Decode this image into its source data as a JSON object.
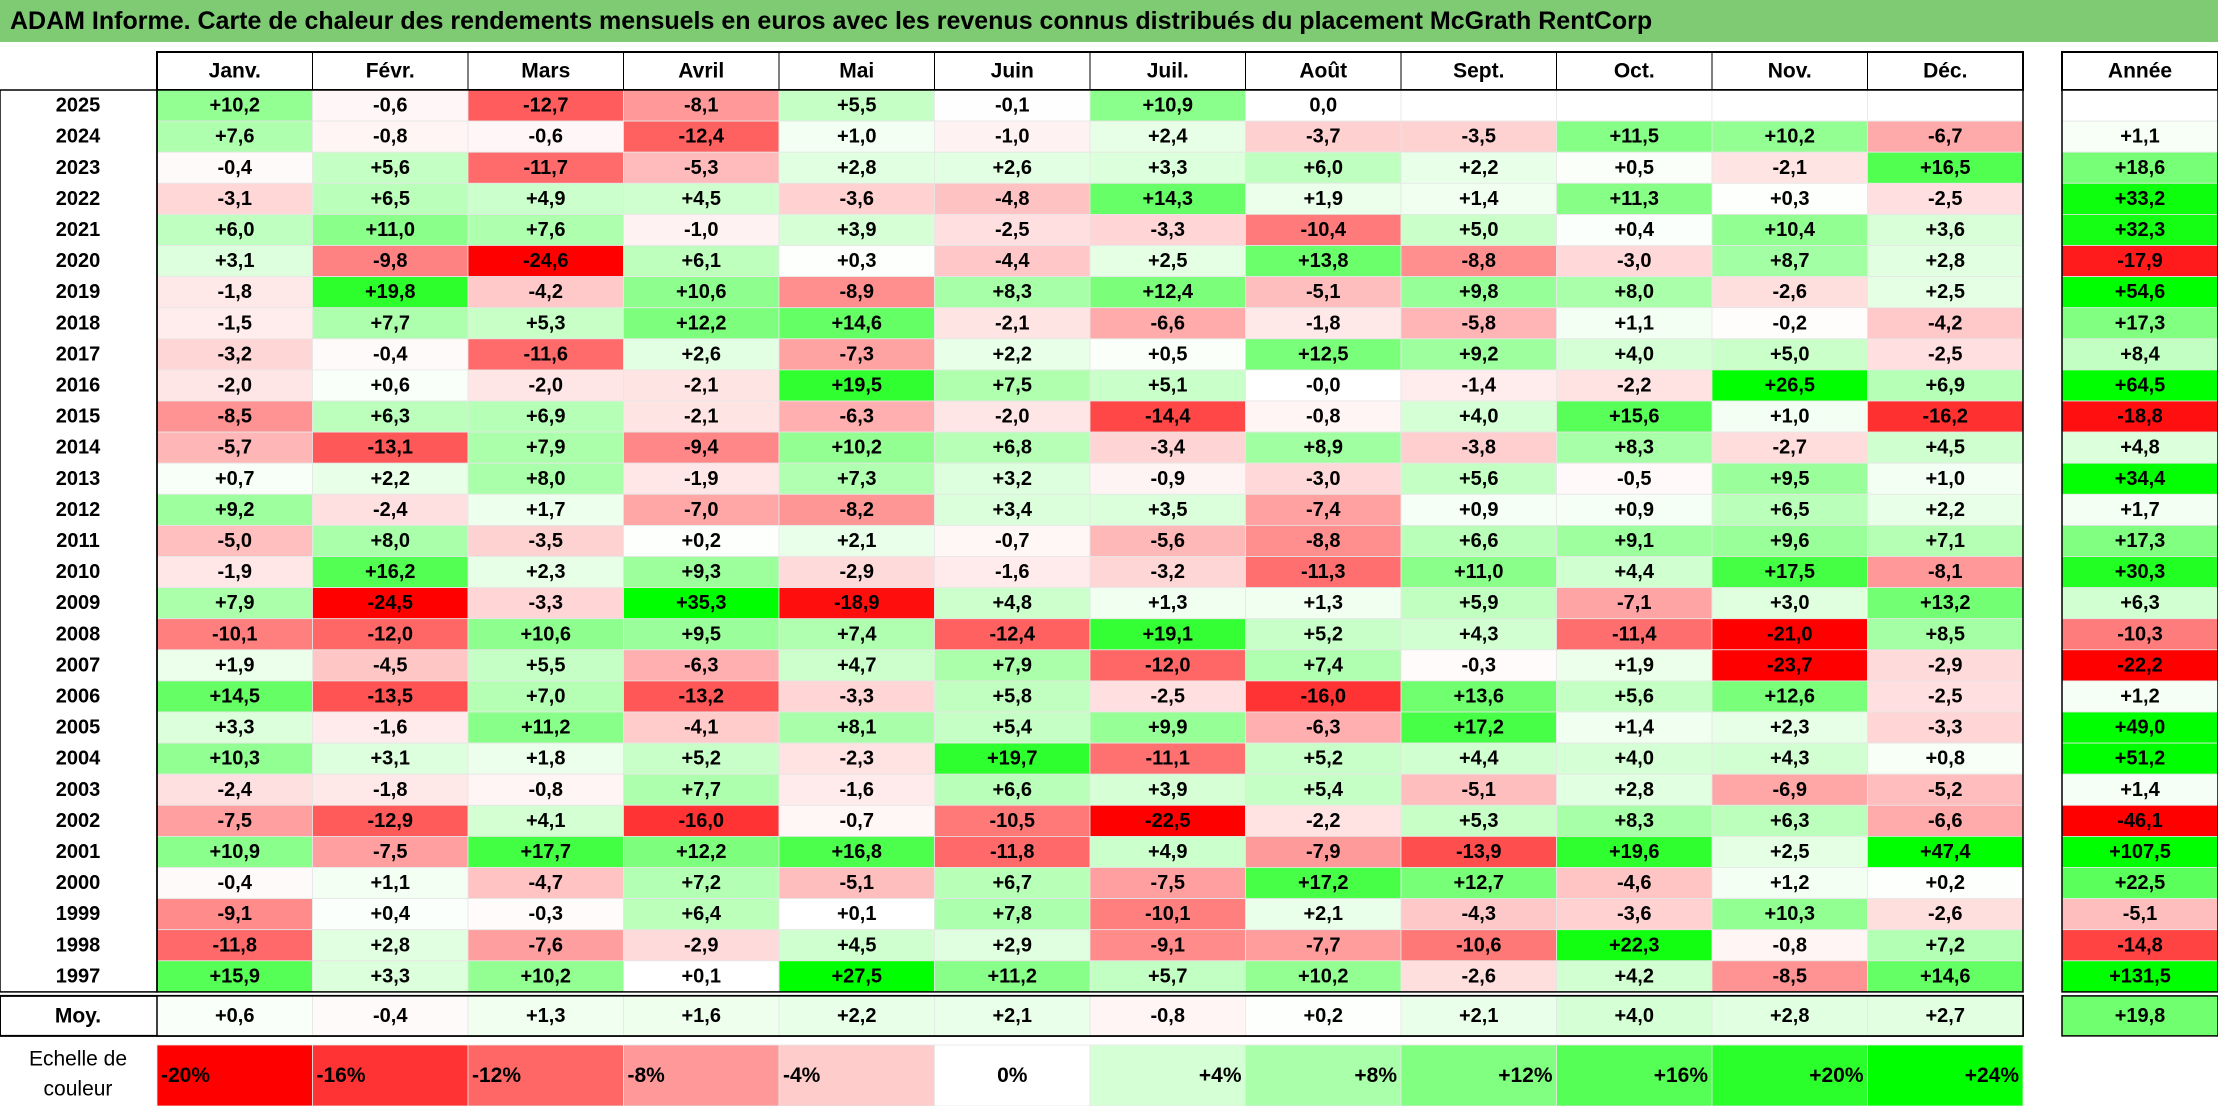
{
  "title": "ADAM Informe. Carte de chaleur des rendements mensuels en euros avec les revenus connus distribués du placement McGrath RentCorp",
  "colors": {
    "title_bar": "#7ecb74",
    "max_red": "#ff0000",
    "max_green": "#00ff00",
    "neutral": "#ffffff"
  },
  "chart_data": {
    "type": "heatmap",
    "title": "ADAM Informe. Carte de chaleur des rendements mensuels en euros avec les revenus connus distribués du placement McGrath RentCorp",
    "columns": [
      "Janv.",
      "Févr.",
      "Mars",
      "Avril",
      "Mai",
      "Juin",
      "Juil.",
      "Août",
      "Sept.",
      "Oct.",
      "Nov.",
      "Déc."
    ],
    "year_header": "Année",
    "rows": [
      {
        "label": "2025",
        "values": [
          "+10,2",
          "-0,6",
          "-12,7",
          "-8,1",
          "+5,5",
          "-0,1",
          "+10,9",
          "0,0",
          "",
          "",
          "",
          ""
        ],
        "year": ""
      },
      {
        "label": "2024",
        "values": [
          "+7,6",
          "-0,8",
          "-0,6",
          "-12,4",
          "+1,0",
          "-1,0",
          "+2,4",
          "-3,7",
          "-3,5",
          "+11,5",
          "+10,2",
          "-6,7"
        ],
        "year": "+1,1"
      },
      {
        "label": "2023",
        "values": [
          "-0,4",
          "+5,6",
          "-11,7",
          "-5,3",
          "+2,8",
          "+2,6",
          "+3,3",
          "+6,0",
          "+2,2",
          "+0,5",
          "-2,1",
          "+16,5"
        ],
        "year": "+18,6"
      },
      {
        "label": "2022",
        "values": [
          "-3,1",
          "+6,5",
          "+4,9",
          "+4,5",
          "-3,6",
          "-4,8",
          "+14,3",
          "+1,9",
          "+1,4",
          "+11,3",
          "+0,3",
          "-2,5"
        ],
        "year": "+33,2"
      },
      {
        "label": "2021",
        "values": [
          "+6,0",
          "+11,0",
          "+7,6",
          "-1,0",
          "+3,9",
          "-2,5",
          "-3,3",
          "-10,4",
          "+5,0",
          "+0,4",
          "+10,4",
          "+3,6"
        ],
        "year": "+32,3"
      },
      {
        "label": "2020",
        "values": [
          "+3,1",
          "-9,8",
          "-24,6",
          "+6,1",
          "+0,3",
          "-4,4",
          "+2,5",
          "+13,8",
          "-8,8",
          "-3,0",
          "+8,7",
          "+2,8"
        ],
        "year": "-17,9"
      },
      {
        "label": "2019",
        "values": [
          "-1,8",
          "+19,8",
          "-4,2",
          "+10,6",
          "-8,9",
          "+8,3",
          "+12,4",
          "-5,1",
          "+9,8",
          "+8,0",
          "-2,6",
          "+2,5"
        ],
        "year": "+54,6"
      },
      {
        "label": "2018",
        "values": [
          "-1,5",
          "+7,7",
          "+5,3",
          "+12,2",
          "+14,6",
          "-2,1",
          "-6,6",
          "-1,8",
          "-5,8",
          "+1,1",
          "-0,2",
          "-4,2"
        ],
        "year": "+17,3"
      },
      {
        "label": "2017",
        "values": [
          "-3,2",
          "-0,4",
          "-11,6",
          "+2,6",
          "-7,3",
          "+2,2",
          "+0,5",
          "+12,5",
          "+9,2",
          "+4,0",
          "+5,0",
          "-2,5"
        ],
        "year": "+8,4"
      },
      {
        "label": "2016",
        "values": [
          "-2,0",
          "+0,6",
          "-2,0",
          "-2,1",
          "+19,5",
          "+7,5",
          "+5,1",
          "-0,0",
          "-1,4",
          "-2,2",
          "+26,5",
          "+6,9"
        ],
        "year": "+64,5"
      },
      {
        "label": "2015",
        "values": [
          "-8,5",
          "+6,3",
          "+6,9",
          "-2,1",
          "-6,3",
          "-2,0",
          "-14,4",
          "-0,8",
          "+4,0",
          "+15,6",
          "+1,0",
          "-16,2"
        ],
        "year": "-18,8"
      },
      {
        "label": "2014",
        "values": [
          "-5,7",
          "-13,1",
          "+7,9",
          "-9,4",
          "+10,2",
          "+6,8",
          "-3,4",
          "+8,9",
          "-3,8",
          "+8,3",
          "-2,7",
          "+4,5"
        ],
        "year": "+4,8"
      },
      {
        "label": "2013",
        "values": [
          "+0,7",
          "+2,2",
          "+8,0",
          "-1,9",
          "+7,3",
          "+3,2",
          "-0,9",
          "-3,0",
          "+5,6",
          "-0,5",
          "+9,5",
          "+1,0"
        ],
        "year": "+34,4"
      },
      {
        "label": "2012",
        "values": [
          "+9,2",
          "-2,4",
          "+1,7",
          "-7,0",
          "-8,2",
          "+3,4",
          "+3,5",
          "-7,4",
          "+0,9",
          "+0,9",
          "+6,5",
          "+2,2"
        ],
        "year": "+1,7"
      },
      {
        "label": "2011",
        "values": [
          "-5,0",
          "+8,0",
          "-3,5",
          "+0,2",
          "+2,1",
          "-0,7",
          "-5,6",
          "-8,8",
          "+6,6",
          "+9,1",
          "+9,6",
          "+7,1"
        ],
        "year": "+17,3"
      },
      {
        "label": "2010",
        "values": [
          "-1,9",
          "+16,2",
          "+2,3",
          "+9,3",
          "-2,9",
          "-1,6",
          "-3,2",
          "-11,3",
          "+11,0",
          "+4,4",
          "+17,5",
          "-8,1"
        ],
        "year": "+30,3"
      },
      {
        "label": "2009",
        "values": [
          "+7,9",
          "-24,5",
          "-3,3",
          "+35,3",
          "-18,9",
          "+4,8",
          "+1,3",
          "+1,3",
          "+5,9",
          "-7,1",
          "+3,0",
          "+13,2"
        ],
        "year": "+6,3"
      },
      {
        "label": "2008",
        "values": [
          "-10,1",
          "-12,0",
          "+10,6",
          "+9,5",
          "+7,4",
          "-12,4",
          "+19,1",
          "+5,2",
          "+4,3",
          "-11,4",
          "-21,0",
          "+8,5"
        ],
        "year": "-10,3"
      },
      {
        "label": "2007",
        "values": [
          "+1,9",
          "-4,5",
          "+5,5",
          "-6,3",
          "+4,7",
          "+7,9",
          "-12,0",
          "+7,4",
          "-0,3",
          "+1,9",
          "-23,7",
          "-2,9"
        ],
        "year": "-22,2"
      },
      {
        "label": "2006",
        "values": [
          "+14,5",
          "-13,5",
          "+7,0",
          "-13,2",
          "-3,3",
          "+5,8",
          "-2,5",
          "-16,0",
          "+13,6",
          "+5,6",
          "+12,6",
          "-2,5"
        ],
        "year": "+1,2"
      },
      {
        "label": "2005",
        "values": [
          "+3,3",
          "-1,6",
          "+11,2",
          "-4,1",
          "+8,1",
          "+5,4",
          "+9,9",
          "-6,3",
          "+17,2",
          "+1,4",
          "+2,3",
          "-3,3"
        ],
        "year": "+49,0"
      },
      {
        "label": "2004",
        "values": [
          "+10,3",
          "+3,1",
          "+1,8",
          "+5,2",
          "-2,3",
          "+19,7",
          "-11,1",
          "+5,2",
          "+4,4",
          "+4,0",
          "+4,3",
          "+0,8"
        ],
        "year": "+51,2"
      },
      {
        "label": "2003",
        "values": [
          "-2,4",
          "-1,8",
          "-0,8",
          "+7,7",
          "-1,6",
          "+6,6",
          "+3,9",
          "+5,4",
          "-5,1",
          "+2,8",
          "-6,9",
          "-5,2"
        ],
        "year": "+1,4"
      },
      {
        "label": "2002",
        "values": [
          "-7,5",
          "-12,9",
          "+4,1",
          "-16,0",
          "-0,7",
          "-10,5",
          "-22,5",
          "-2,2",
          "+5,3",
          "+8,3",
          "+6,3",
          "-6,6"
        ],
        "year": "-46,1"
      },
      {
        "label": "2001",
        "values": [
          "+10,9",
          "-7,5",
          "+17,7",
          "+12,2",
          "+16,8",
          "-11,8",
          "+4,9",
          "-7,9",
          "-13,9",
          "+19,6",
          "+2,5",
          "+47,4"
        ],
        "year": "+107,5"
      },
      {
        "label": "2000",
        "values": [
          "-0,4",
          "+1,1",
          "-4,7",
          "+7,2",
          "-5,1",
          "+6,7",
          "-7,5",
          "+17,2",
          "+12,7",
          "-4,6",
          "+1,2",
          "+0,2"
        ],
        "year": "+22,5"
      },
      {
        "label": "1999",
        "values": [
          "-9,1",
          "+0,4",
          "-0,3",
          "+6,4",
          "+0,1",
          "+7,8",
          "-10,1",
          "+2,1",
          "-4,3",
          "-3,6",
          "+10,3",
          "-2,6"
        ],
        "year": "-5,1"
      },
      {
        "label": "1998",
        "values": [
          "-11,8",
          "+2,8",
          "-7,6",
          "-2,9",
          "+4,5",
          "+2,9",
          "-9,1",
          "-7,7",
          "-10,6",
          "+22,3",
          "-0,8",
          "+7,2"
        ],
        "year": "-14,8"
      },
      {
        "label": "1997",
        "values": [
          "+15,9",
          "+3,3",
          "+10,2",
          "+0,1",
          "+27,5",
          "+11,2",
          "+5,7",
          "+10,2",
          "-2,6",
          "+4,2",
          "-8,5",
          "+14,6"
        ],
        "year": "+131,5"
      }
    ],
    "average": {
      "label": "Moy.",
      "values": [
        "+0,6",
        "-0,4",
        "+1,3",
        "+1,6",
        "+2,2",
        "+2,1",
        "-0,8",
        "+0,2",
        "+2,1",
        "+4,0",
        "+2,8",
        "+2,7"
      ],
      "year": "+19,8"
    },
    "scale": {
      "label_line1": "Echelle de",
      "label_line2": "couleur",
      "steps": [
        {
          "label": "-20%",
          "value": -20
        },
        {
          "label": "-16%",
          "value": -16
        },
        {
          "label": "-12%",
          "value": -12
        },
        {
          "label": "-8%",
          "value": -8
        },
        {
          "label": "-4%",
          "value": -4
        },
        {
          "label": "0%",
          "value": 0
        },
        {
          "label": "+4%",
          "value": 4
        },
        {
          "label": "+8%",
          "value": 8
        },
        {
          "label": "+12%",
          "value": 12
        },
        {
          "label": "+16%",
          "value": 16
        },
        {
          "label": "+20%",
          "value": 20
        },
        {
          "label": "+24%",
          "value": 24
        }
      ]
    },
    "color_limits": {
      "monthly": [
        -20,
        24
      ],
      "yearly": [
        -20,
        35
      ]
    }
  }
}
